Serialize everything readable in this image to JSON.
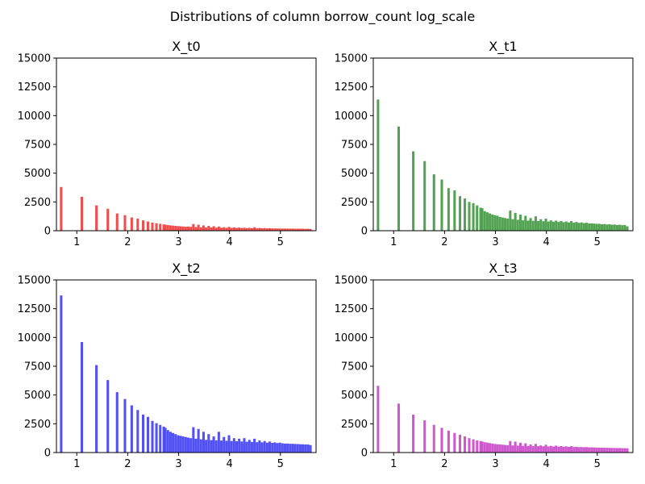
{
  "chart_data": {
    "type": "bar",
    "title": "Distributions of column borrow_count log_scale",
    "bin_width": 0.0485,
    "xlim": [
      0.6,
      5.7
    ],
    "ylim": [
      0,
      15000
    ],
    "xticks": [
      1,
      2,
      3,
      4,
      5
    ],
    "yticks": [
      0,
      2500,
      5000,
      7500,
      10000,
      12500,
      15000
    ],
    "grid": false,
    "panels": [
      {
        "title": "X_t0",
        "color": "#ef4444",
        "x": [
          0.693,
          1.099,
          1.386,
          1.609,
          1.792,
          1.946,
          2.079,
          2.197,
          2.303,
          2.398,
          2.485,
          2.565,
          2.639,
          2.708,
          2.74,
          2.79,
          2.84,
          2.89,
          2.94,
          2.99,
          3.04,
          3.09,
          3.14,
          3.19,
          3.24,
          3.29,
          3.34,
          3.39,
          3.44,
          3.49,
          3.54,
          3.59,
          3.64,
          3.69,
          3.74,
          3.79,
          3.84,
          3.89,
          3.94,
          3.99,
          4.04,
          4.09,
          4.14,
          4.19,
          4.24,
          4.29,
          4.34,
          4.39,
          4.44,
          4.49,
          4.54,
          4.59,
          4.64,
          4.69,
          4.74,
          4.79,
          4.84,
          4.89,
          4.94,
          4.99,
          5.04,
          5.09,
          5.14,
          5.19,
          5.24,
          5.29,
          5.34,
          5.39,
          5.44,
          5.49,
          5.54,
          5.59
        ],
        "values": [
          3800,
          2950,
          2200,
          1900,
          1500,
          1350,
          1150,
          1050,
          900,
          800,
          700,
          650,
          600,
          550,
          520,
          490,
          460,
          440,
          420,
          400,
          380,
          370,
          350,
          360,
          340,
          580,
          320,
          520,
          300,
          460,
          290,
          420,
          280,
          390,
          270,
          360,
          260,
          300,
          250,
          330,
          245,
          290,
          240,
          280,
          230,
          260,
          225,
          250,
          220,
          300,
          215,
          240,
          210,
          230,
          205,
          220,
          200,
          200,
          195,
          190,
          190,
          180,
          185,
          175,
          180,
          170,
          175,
          165,
          170,
          160,
          165,
          150
        ]
      },
      {
        "title": "X_t1",
        "color": "#4b9e4b",
        "x": [
          0.693,
          1.099,
          1.386,
          1.609,
          1.792,
          1.946,
          2.079,
          2.197,
          2.303,
          2.398,
          2.485,
          2.565,
          2.639,
          2.708,
          2.74,
          2.79,
          2.84,
          2.89,
          2.94,
          2.99,
          3.04,
          3.09,
          3.14,
          3.19,
          3.24,
          3.29,
          3.34,
          3.39,
          3.44,
          3.49,
          3.54,
          3.59,
          3.64,
          3.69,
          3.74,
          3.79,
          3.84,
          3.89,
          3.94,
          3.99,
          4.04,
          4.09,
          4.14,
          4.19,
          4.24,
          4.29,
          4.34,
          4.39,
          4.44,
          4.49,
          4.54,
          4.59,
          4.64,
          4.69,
          4.74,
          4.79,
          4.84,
          4.89,
          4.94,
          4.99,
          5.04,
          5.09,
          5.14,
          5.19,
          5.24,
          5.29,
          5.34,
          5.39,
          5.44,
          5.49,
          5.54,
          5.59
        ],
        "values": [
          11400,
          9050,
          6900,
          6050,
          4900,
          4450,
          3700,
          3500,
          3000,
          2800,
          2500,
          2400,
          2200,
          2000,
          1950,
          1700,
          1600,
          1500,
          1400,
          1350,
          1300,
          1200,
          1150,
          1100,
          1050,
          1750,
          1000,
          1550,
          950,
          1400,
          900,
          1300,
          880,
          1100,
          860,
          1250,
          840,
          1000,
          820,
          1050,
          800,
          900,
          780,
          880,
          760,
          850,
          740,
          800,
          720,
          840,
          700,
          760,
          680,
          720,
          660,
          690,
          640,
          640,
          620,
          600,
          600,
          560,
          580,
          540,
          560,
          520,
          540,
          500,
          520,
          480,
          500,
          380
        ]
      },
      {
        "title": "X_t2",
        "color": "#4848f5",
        "x": [
          0.693,
          1.099,
          1.386,
          1.609,
          1.792,
          1.946,
          2.079,
          2.197,
          2.303,
          2.398,
          2.485,
          2.565,
          2.639,
          2.708,
          2.74,
          2.79,
          2.84,
          2.89,
          2.94,
          2.99,
          3.04,
          3.09,
          3.14,
          3.19,
          3.24,
          3.29,
          3.34,
          3.39,
          3.44,
          3.49,
          3.54,
          3.59,
          3.64,
          3.69,
          3.74,
          3.79,
          3.84,
          3.89,
          3.94,
          3.99,
          4.04,
          4.09,
          4.14,
          4.19,
          4.24,
          4.29,
          4.34,
          4.39,
          4.44,
          4.49,
          4.54,
          4.59,
          4.64,
          4.69,
          4.74,
          4.79,
          4.84,
          4.89,
          4.94,
          4.99,
          5.04,
          5.09,
          5.14,
          5.19,
          5.24,
          5.29,
          5.34,
          5.39,
          5.44,
          5.49,
          5.54,
          5.59
        ],
        "values": [
          13650,
          9600,
          7600,
          6300,
          5250,
          4650,
          4100,
          3700,
          3300,
          3100,
          2750,
          2550,
          2400,
          2250,
          2150,
          1950,
          1800,
          1700,
          1600,
          1500,
          1450,
          1400,
          1350,
          1300,
          1250,
          2200,
          1200,
          2050,
          1150,
          1800,
          1100,
          1600,
          1080,
          1400,
          1060,
          1800,
          1040,
          1350,
          1020,
          1500,
          1000,
          1250,
          980,
          1200,
          960,
          1250,
          940,
          1100,
          920,
          1200,
          900,
          1050,
          880,
          1000,
          860,
          950,
          840,
          880,
          820,
          860,
          800,
          780,
          780,
          760,
          760,
          740,
          740,
          720,
          720,
          700,
          700,
          650
        ]
      },
      {
        "title": "X_t3",
        "color": "#cc4fcc",
        "x": [
          0.693,
          1.099,
          1.386,
          1.609,
          1.792,
          1.946,
          2.079,
          2.197,
          2.303,
          2.398,
          2.485,
          2.565,
          2.639,
          2.708,
          2.74,
          2.79,
          2.84,
          2.89,
          2.94,
          2.99,
          3.04,
          3.09,
          3.14,
          3.19,
          3.24,
          3.29,
          3.34,
          3.39,
          3.44,
          3.49,
          3.54,
          3.59,
          3.64,
          3.69,
          3.74,
          3.79,
          3.84,
          3.89,
          3.94,
          3.99,
          4.04,
          4.09,
          4.14,
          4.19,
          4.24,
          4.29,
          4.34,
          4.39,
          4.44,
          4.49,
          4.54,
          4.59,
          4.64,
          4.69,
          4.74,
          4.79,
          4.84,
          4.89,
          4.94,
          4.99,
          5.04,
          5.09,
          5.14,
          5.19,
          5.24,
          5.29,
          5.34,
          5.39,
          5.44,
          5.49,
          5.54,
          5.59
        ],
        "values": [
          5800,
          4250,
          3300,
          2800,
          2400,
          2150,
          1900,
          1700,
          1550,
          1400,
          1250,
          1150,
          1050,
          1000,
          960,
          900,
          860,
          820,
          780,
          740,
          720,
          700,
          680,
          660,
          640,
          1000,
          620,
          950,
          600,
          850,
          580,
          800,
          570,
          700,
          560,
          750,
          550,
          620,
          540,
          680,
          530,
          580,
          520,
          600,
          510,
          560,
          500,
          540,
          490,
          560,
          480,
          500,
          470,
          480,
          460,
          470,
          450,
          450,
          440,
          430,
          430,
          420,
          420,
          410,
          410,
          400,
          400,
          390,
          390,
          380,
          380,
          370
        ]
      }
    ]
  }
}
